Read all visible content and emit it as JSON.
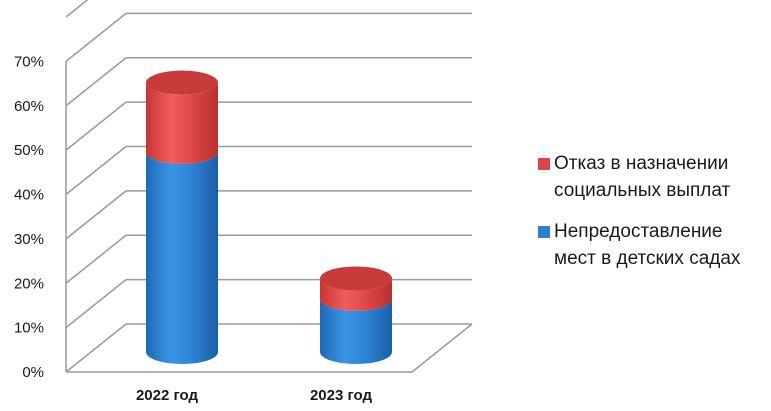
{
  "chart_data": {
    "type": "bar",
    "stacked": true,
    "style": "3d-cylinder",
    "categories": [
      "2022 год",
      "2023 год"
    ],
    "series": [
      {
        "name": "Непредоставление мест в детских садах",
        "values": [
          49,
          13
        ],
        "color": "#2a7fd1"
      },
      {
        "name": "Отказ в назначении социальных выплат",
        "values": [
          17,
          5
        ],
        "color": "#e04545"
      }
    ],
    "yticks": [
      "0%",
      "10%",
      "20%",
      "30%",
      "40%",
      "50%",
      "60%",
      "70%"
    ],
    "ylim": [
      0,
      80
    ],
    "grid": true,
    "legend_position": "right",
    "legend_order": [
      "Отказ в назначении социальных выплат",
      "Непредоставление мест в детских садах"
    ],
    "legend_lines": {
      "Отказ в назначении социальных выплат": [
        "Отказ в назначении",
        "социальных выплат"
      ],
      "Непредоставление мест в детских садах": [
        "Непредоставление",
        "мест в детских садах"
      ]
    }
  }
}
